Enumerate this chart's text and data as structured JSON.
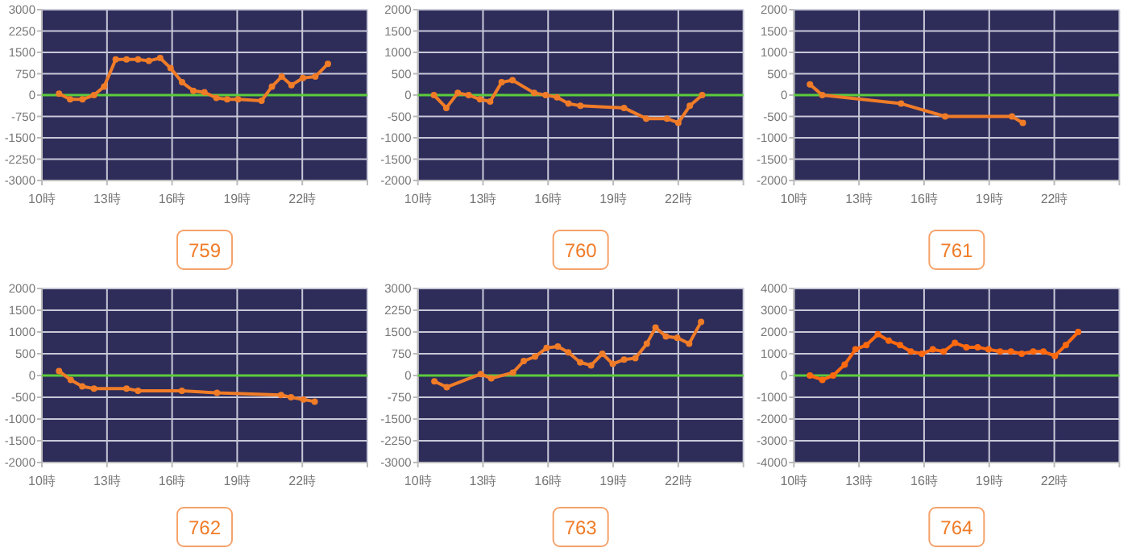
{
  "chart_data": [
    {
      "type": "line",
      "x": [
        10.79,
        11.3,
        11.87,
        12.4,
        12.87,
        13.4,
        13.9,
        14.43,
        14.93,
        15.45,
        15.93,
        16.46,
        16.98,
        17.49,
        18.04,
        18.54,
        19.04,
        20.12,
        20.6,
        21.05,
        21.5,
        22.03,
        22.6,
        23.18
      ],
      "series": [
        {
          "color": "#f07c28",
          "values": [
            50,
            -150,
            -150,
            0,
            300,
            1250,
            1250,
            1250,
            1200,
            1300,
            950,
            450,
            150,
            100,
            -100,
            -150,
            -150,
            -200,
            300,
            650,
            350,
            600,
            650,
            1100
          ]
        }
      ],
      "xlim": [
        10,
        25
      ],
      "xticks": [
        {
          "value": 10,
          "label": "10時"
        },
        {
          "value": 13,
          "label": "13時"
        },
        {
          "value": 16,
          "label": "16時"
        },
        {
          "value": 19,
          "label": "19時"
        },
        {
          "value": 22,
          "label": "22時"
        },
        {
          "value": 25,
          "label": null
        }
      ],
      "ylim": [
        -3000,
        3000
      ],
      "yticks": [
        -3000,
        -2250,
        -1500,
        -750,
        0,
        750,
        1500,
        2250,
        3000
      ],
      "ref_lines": [
        {
          "axis": "y",
          "value": 0,
          "color": "#5ccc3c"
        }
      ],
      "grid": true,
      "marker": "circle",
      "annotations": [
        "759"
      ]
    },
    {
      "type": "line",
      "x": [
        10.74,
        11.31,
        11.84,
        12.34,
        12.86,
        13.33,
        13.86,
        14.36,
        15.36,
        15.89,
        16.41,
        16.94,
        17.49,
        19.5,
        20.52,
        21.48,
        22.0,
        22.53,
        23.1
      ],
      "series": [
        {
          "color": "#f07c28",
          "values": [
            0,
            -300,
            50,
            0,
            -100,
            -150,
            300,
            350,
            50,
            0,
            -50,
            -200,
            -250,
            -300,
            -550,
            -550,
            -650,
            -250,
            0
          ]
        }
      ],
      "xlim": [
        10,
        25
      ],
      "xticks": [
        {
          "value": 10,
          "label": "10時"
        },
        {
          "value": 13,
          "label": "13時"
        },
        {
          "value": 16,
          "label": "16時"
        },
        {
          "value": 19,
          "label": "19時"
        },
        {
          "value": 22,
          "label": "22時"
        },
        {
          "value": 25,
          "label": null
        }
      ],
      "ylim": [
        -2000,
        2000
      ],
      "yticks": [
        -2000,
        -1500,
        -1000,
        -500,
        0,
        500,
        1000,
        1500,
        2000
      ],
      "ref_lines": [
        {
          "axis": "y",
          "value": 0,
          "color": "#5ccc3c"
        }
      ],
      "grid": true,
      "marker": "circle",
      "annotations": [
        "760"
      ]
    },
    {
      "type": "line",
      "x": [
        10.74,
        11.31,
        14.94,
        16.97,
        20.05,
        20.55
      ],
      "series": [
        {
          "color": "#f07c28",
          "values": [
            250,
            0,
            -200,
            -500,
            -500,
            -650
          ]
        }
      ],
      "xlim": [
        10,
        25
      ],
      "xticks": [
        {
          "value": 10,
          "label": "10時"
        },
        {
          "value": 13,
          "label": "13時"
        },
        {
          "value": 16,
          "label": "16時"
        },
        {
          "value": 19,
          "label": "19時"
        },
        {
          "value": 22,
          "label": "22時"
        },
        {
          "value": 25,
          "label": null
        }
      ],
      "ylim": [
        -2000,
        2000
      ],
      "yticks": [
        -2000,
        -1500,
        -1000,
        -500,
        0,
        500,
        1000,
        1500,
        2000
      ],
      "ref_lines": [
        {
          "axis": "y",
          "value": 0,
          "color": "#5ccc3c"
        }
      ],
      "grid": true,
      "marker": "circle",
      "annotations": [
        "761"
      ]
    },
    {
      "type": "line",
      "x": [
        10.79,
        11.33,
        11.86,
        12.4,
        13.9,
        14.43,
        16.45,
        18.07,
        21.02,
        21.48,
        22.05,
        22.57
      ],
      "series": [
        {
          "color": "#f07c28",
          "values": [
            100,
            -100,
            -250,
            -300,
            -300,
            -350,
            -350,
            -400,
            -450,
            -500,
            -550,
            -600
          ]
        }
      ],
      "xlim": [
        10,
        25
      ],
      "xticks": [
        {
          "value": 10,
          "label": "10時"
        },
        {
          "value": 13,
          "label": "13時"
        },
        {
          "value": 16,
          "label": "16時"
        },
        {
          "value": 19,
          "label": "19時"
        },
        {
          "value": 22,
          "label": "22時"
        },
        {
          "value": 25,
          "label": null
        }
      ],
      "ylim": [
        -2000,
        2000
      ],
      "yticks": [
        -2000,
        -1500,
        -1000,
        -500,
        0,
        500,
        1000,
        1500,
        2000
      ],
      "ref_lines": [
        {
          "axis": "y",
          "value": 0,
          "color": "#5ccc3c"
        }
      ],
      "grid": true,
      "marker": "circle",
      "annotations": [
        "762"
      ]
    },
    {
      "type": "line",
      "x": [
        10.76,
        11.33,
        12.9,
        13.38,
        14.38,
        14.88,
        15.4,
        15.93,
        16.45,
        16.93,
        17.48,
        17.98,
        18.5,
        18.98,
        19.5,
        20.02,
        20.55,
        20.95,
        21.43,
        21.95,
        22.5,
        23.05
      ],
      "series": [
        {
          "color": "#f07c28",
          "values": [
            -200,
            -400,
            50,
            -100,
            100,
            500,
            650,
            950,
            1000,
            800,
            450,
            350,
            750,
            400,
            550,
            600,
            1100,
            1650,
            1350,
            1300,
            1100,
            1850
          ]
        }
      ],
      "xlim": [
        10,
        25
      ],
      "xticks": [
        {
          "value": 10,
          "label": "10時"
        },
        {
          "value": 13,
          "label": "13時"
        },
        {
          "value": 16,
          "label": "16時"
        },
        {
          "value": 19,
          "label": "19時"
        },
        {
          "value": 22,
          "label": "22時"
        },
        {
          "value": 25,
          "label": null
        }
      ],
      "ylim": [
        -3000,
        3000
      ],
      "yticks": [
        -3000,
        -2250,
        -1500,
        -750,
        0,
        750,
        1500,
        2250,
        3000
      ],
      "ref_lines": [
        {
          "axis": "y",
          "value": 0,
          "color": "#5ccc3c"
        }
      ],
      "grid": true,
      "marker": "circle",
      "annotations": [
        "763"
      ]
    },
    {
      "type": "line",
      "x": [
        10.74,
        11.31,
        11.81,
        12.34,
        12.84,
        13.34,
        13.87,
        14.37,
        14.89,
        15.39,
        15.9,
        16.4,
        16.9,
        17.42,
        17.95,
        18.47,
        18.97,
        19.5,
        20.0,
        20.5,
        21.03,
        21.5,
        22.03,
        22.53,
        23.1
      ],
      "series": [
        {
          "color": "#ff6a10",
          "values": [
            0,
            -200,
            0,
            500,
            1200,
            1400,
            1900,
            1600,
            1400,
            1100,
            1000,
            1200,
            1100,
            1500,
            1300,
            1300,
            1200,
            1100,
            1100,
            1000,
            1100,
            1100,
            900,
            1400,
            2000
          ]
        }
      ],
      "xlim": [
        10,
        25
      ],
      "xticks": [
        {
          "value": 10,
          "label": "10時"
        },
        {
          "value": 13,
          "label": "13時"
        },
        {
          "value": 16,
          "label": "16時"
        },
        {
          "value": 19,
          "label": "19時"
        },
        {
          "value": 22,
          "label": "22時"
        },
        {
          "value": 25,
          "label": null
        }
      ],
      "ylim": [
        -4000,
        4000
      ],
      "yticks": [
        -4000,
        -3000,
        -2000,
        -1000,
        0,
        1000,
        2000,
        3000,
        4000
      ],
      "ref_lines": [
        {
          "axis": "y",
          "value": 0,
          "color": "#5ccc3c"
        }
      ],
      "grid": true,
      "marker": "circle",
      "annotations": [
        "764"
      ]
    }
  ]
}
